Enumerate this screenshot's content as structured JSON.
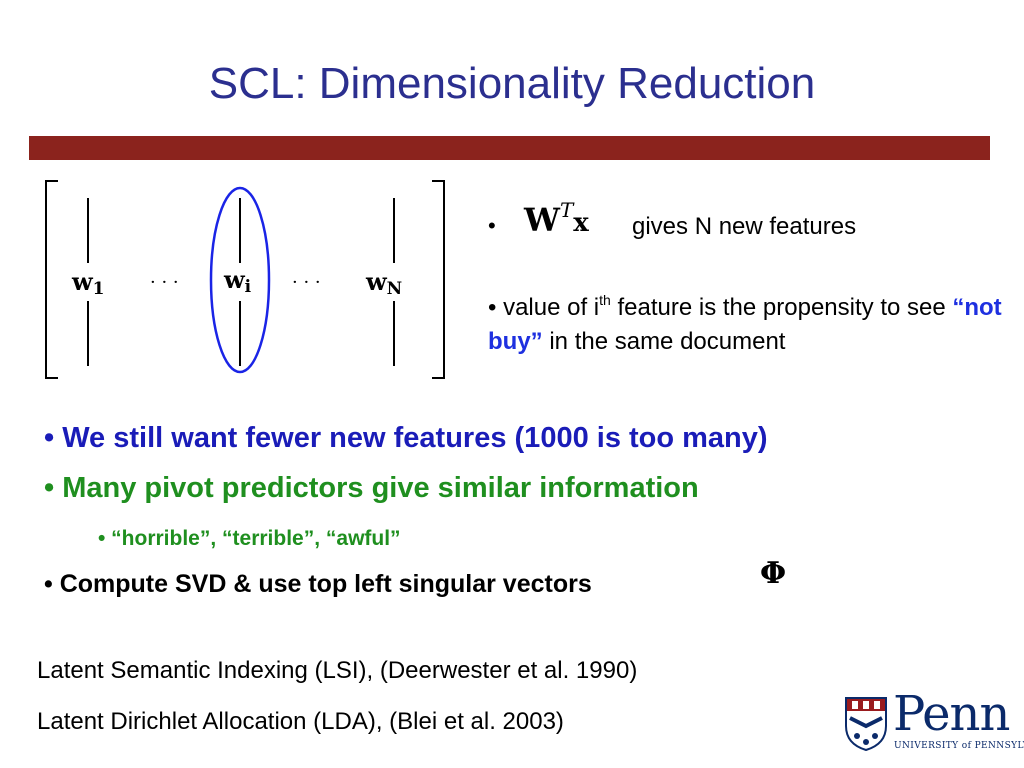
{
  "slide": {
    "title": "SCL: Dimensionality Reduction",
    "matrix": {
      "col1": "w",
      "col1_sub": "1",
      "col_i": "w",
      "col_i_sub": "i",
      "col_n": "w",
      "col_n_sub": "N",
      "dots": "· · ·"
    },
    "right": {
      "bullet": "•",
      "math_W": "W",
      "math_T": "T",
      "math_x": "x",
      "gives": "gives N new features",
      "value_prefix": "• value of i",
      "value_sup": "th",
      "value_mid": " feature is the propensity to see ",
      "value_quote": "“not buy”",
      "value_end": " in the same document"
    },
    "bullets": {
      "b1": "• We still want fewer new features (1000 is too many)",
      "b2": "• Many pivot predictors give similar information",
      "b3": "• “horrible”, “terrible”, “awful”",
      "b4": "• Compute SVD & use top left singular vectors",
      "phi": "Φ"
    },
    "refs": {
      "lsi": "Latent Semantic Indexing (LSI), (Deerwester et al. 1990)",
      "lda": "Latent Dirichlet Allocation (LDA), (Blei et al. 2003)"
    },
    "logo": {
      "word": "Penn",
      "sub": "UNIVERSITY of PENNSYLVANIA"
    }
  },
  "colors": {
    "title": "#2b2f8f",
    "rule": "#8b231d",
    "blue_bullet": "#1a1cb8",
    "green_bullet": "#1f8f1f",
    "highlight_ellipse": "#1a24e6",
    "not_buy": "#1e30e0",
    "penn_blue": "#0b2a6a",
    "penn_red": "#9a1b1e"
  }
}
